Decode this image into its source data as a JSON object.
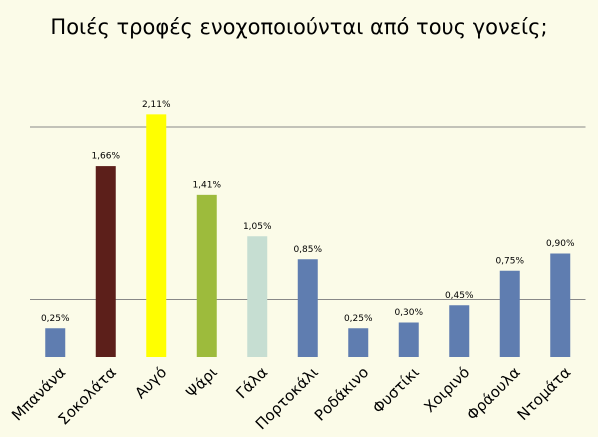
{
  "chart_data": {
    "type": "bar",
    "title": "Ποιές τροφές ενοχοποιούνται από τους γονείς;",
    "categories": [
      "Μπανάνα",
      "Σοκολάτα",
      "Αυγό",
      "Ψάρι",
      "Γάλα",
      "Πορτοκάλι",
      "Ροδάκινο",
      "Φυστίκι",
      "Χοιρινό",
      "Φράουλα",
      "Ντομάτα"
    ],
    "values": [
      0.25,
      1.66,
      2.11,
      1.41,
      1.05,
      0.85,
      0.25,
      0.3,
      0.45,
      0.75,
      0.9
    ],
    "value_labels": [
      "0,25%",
      "1,66%",
      "2,11%",
      "1,41%",
      "1,05%",
      "0,85%",
      "0,25%",
      "0,30%",
      "0,45%",
      "0,75%",
      "0,90%"
    ],
    "colors": [
      "#5f7db0",
      "#5c1f1a",
      "#ffff00",
      "#9dbb3c",
      "#c6ded2",
      "#5f7db0",
      "#5f7db0",
      "#5f7db0",
      "#5f7db0",
      "#5f7db0",
      "#5f7db0"
    ],
    "ylim": [
      0,
      2.5
    ],
    "grid_lines": [
      0.5,
      2
    ]
  }
}
